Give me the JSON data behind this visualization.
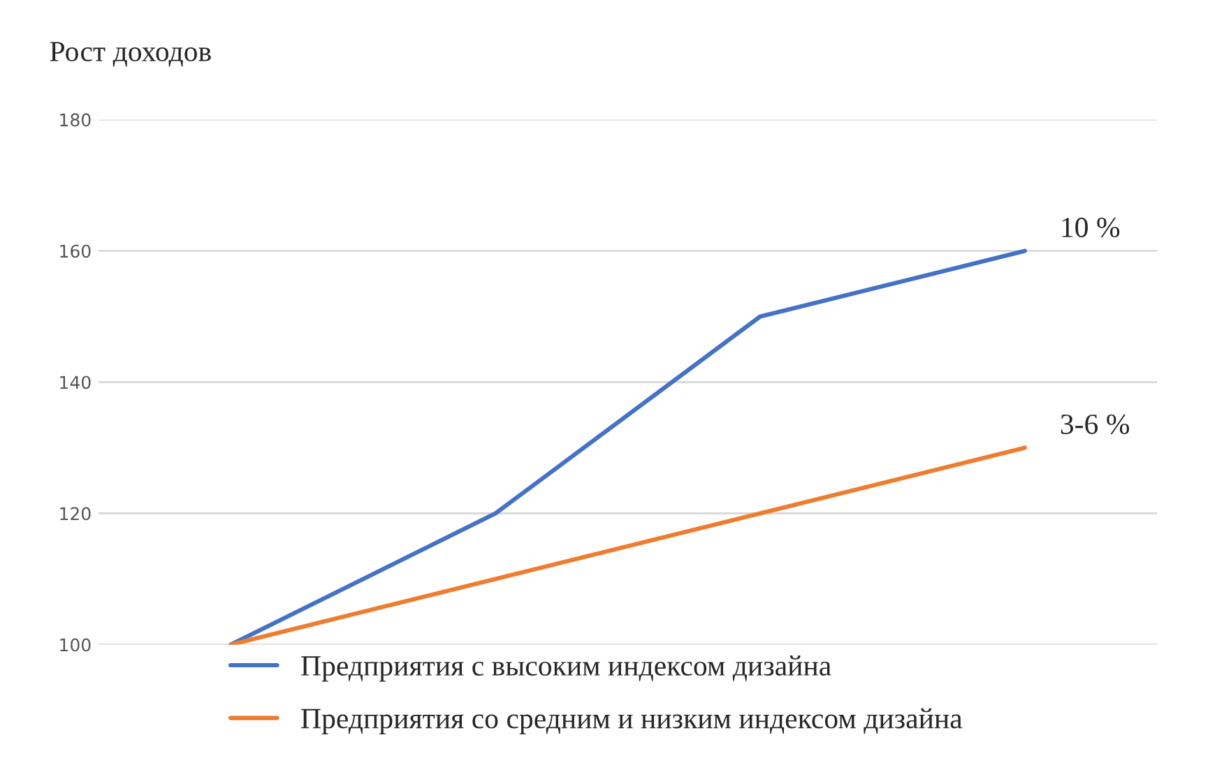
{
  "chart_data": {
    "type": "line",
    "ylabel": "Рост доходов",
    "categories": [
      null,
      null,
      null,
      null
    ],
    "series": [
      {
        "name": "Предприятия с высоким индексом дизайна",
        "color": "#4472c4",
        "values": [
          100,
          120,
          150,
          160
        ]
      },
      {
        "name": "Предприятия со средним и низким индексом дизайна",
        "color": "#ed7d31",
        "values": [
          100,
          110,
          120,
          130
        ]
      }
    ],
    "ylim": [
      100,
      180
    ],
    "yticks": [
      100,
      120,
      140,
      160,
      180
    ],
    "grid": "y",
    "legend": "bottom",
    "marker": "none",
    "line_style": "solid",
    "tick_labels": "y",
    "annotations": [
      "10 %",
      "3-6 %"
    ]
  }
}
